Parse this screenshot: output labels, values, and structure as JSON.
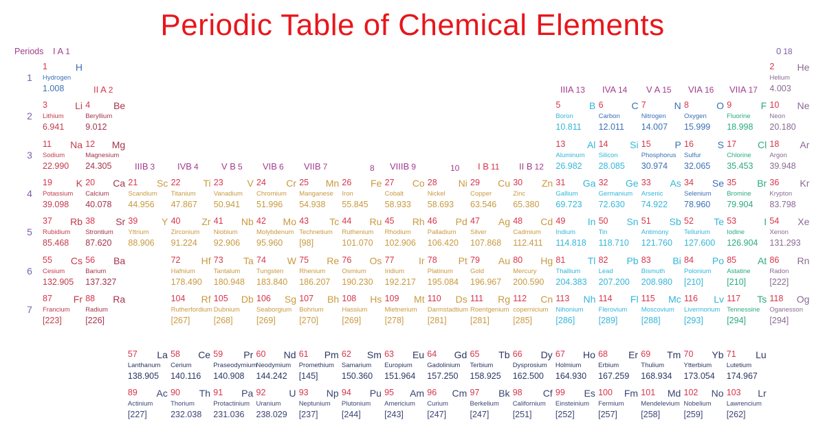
{
  "title": "Periodic Table of Chemical Elements",
  "header": {
    "periods_label": "Periods"
  },
  "period_numbers": [
    "1",
    "2",
    "3",
    "4",
    "5",
    "6",
    "7"
  ],
  "group_labels": {
    "g1": {
      "roman": "I A",
      "num": "1"
    },
    "g2": {
      "roman": "II A",
      "num": "2"
    },
    "g3": {
      "roman": "IIIB",
      "num": "3"
    },
    "g4": {
      "roman": "IVB",
      "num": "4"
    },
    "g5": {
      "roman": "V B",
      "num": "5"
    },
    "g6": {
      "roman": "VIB",
      "num": "6"
    },
    "g7": {
      "roman": "VIIB",
      "num": "7"
    },
    "g8": {
      "roman": "",
      "num": "8"
    },
    "g9": {
      "roman": "VIIIB",
      "num": "9"
    },
    "g10": {
      "roman": "",
      "num": "10"
    },
    "g11": {
      "roman": "I B",
      "num": "11"
    },
    "g12": {
      "roman": "II B",
      "num": "12"
    },
    "g13": {
      "roman": "IIIA",
      "num": "13"
    },
    "g14": {
      "roman": "IVA",
      "num": "14"
    },
    "g15": {
      "roman": "V A",
      "num": "15"
    },
    "g16": {
      "roman": "VIA",
      "num": "16"
    },
    "g17": {
      "roman": "VIIA",
      "num": "17"
    },
    "g18": {
      "roman": "0",
      "num": "18"
    }
  },
  "category_colors": {
    "nonmetal": "#3a6fb5",
    "alkali": "#c23a4a",
    "alkaline": "#a3344a",
    "transition": "#c9993f",
    "post": "#33b6d9",
    "metalloid": "#33b6d9",
    "halogen": "#2aaa7f",
    "noble": "#8a6a93",
    "lanthanide": "#2b3561",
    "actinide": "#3a4472"
  },
  "elements": [
    {
      "z": "1",
      "sym": "H",
      "name": "Hydrogen",
      "mass": "1.008",
      "group": 1,
      "period": 1,
      "cat": "nonmetal"
    },
    {
      "z": "2",
      "sym": "He",
      "name": "Helium",
      "mass": "4.003",
      "group": 18,
      "period": 1,
      "cat": "noble"
    },
    {
      "z": "3",
      "sym": "Li",
      "name": "Lithium",
      "mass": "6.941",
      "group": 1,
      "period": 2,
      "cat": "alkali"
    },
    {
      "z": "4",
      "sym": "Be",
      "name": "Beryllium",
      "mass": "9.012",
      "group": 2,
      "period": 2,
      "cat": "alkaline"
    },
    {
      "z": "5",
      "sym": "B",
      "name": "Boron",
      "mass": "10.811",
      "group": 13,
      "period": 2,
      "cat": "metalloid"
    },
    {
      "z": "6",
      "sym": "C",
      "name": "Carbon",
      "mass": "12.011",
      "group": 14,
      "period": 2,
      "cat": "nonmetal"
    },
    {
      "z": "7",
      "sym": "N",
      "name": "Nitrogen",
      "mass": "14.007",
      "group": 15,
      "period": 2,
      "cat": "nonmetal"
    },
    {
      "z": "8",
      "sym": "O",
      "name": "Oxygen",
      "mass": "15.999",
      "group": 16,
      "period": 2,
      "cat": "nonmetal"
    },
    {
      "z": "9",
      "sym": "F",
      "name": "Fluorine",
      "mass": "18.998",
      "group": 17,
      "period": 2,
      "cat": "halogen"
    },
    {
      "z": "10",
      "sym": "Ne",
      "name": "Neon",
      "mass": "20.180",
      "group": 18,
      "period": 2,
      "cat": "noble"
    },
    {
      "z": "11",
      "sym": "Na",
      "name": "Sodium",
      "mass": "22.990",
      "group": 1,
      "period": 3,
      "cat": "alkali"
    },
    {
      "z": "12",
      "sym": "Mg",
      "name": "Magnesium",
      "mass": "24.305",
      "group": 2,
      "period": 3,
      "cat": "alkaline"
    },
    {
      "z": "13",
      "sym": "Al",
      "name": "Aluminum",
      "mass": "26.982",
      "group": 13,
      "period": 3,
      "cat": "post"
    },
    {
      "z": "14",
      "sym": "Si",
      "name": "Silicon",
      "mass": "28.085",
      "group": 14,
      "period": 3,
      "cat": "metalloid"
    },
    {
      "z": "15",
      "sym": "P",
      "name": "Phosphorus",
      "mass": "30.974",
      "group": 15,
      "period": 3,
      "cat": "nonmetal"
    },
    {
      "z": "16",
      "sym": "S",
      "name": "Sulfur",
      "mass": "32.065",
      "group": 16,
      "period": 3,
      "cat": "nonmetal"
    },
    {
      "z": "17",
      "sym": "Cl",
      "name": "Chlorine",
      "mass": "35.453",
      "group": 17,
      "period": 3,
      "cat": "halogen"
    },
    {
      "z": "18",
      "sym": "Ar",
      "name": "Argon",
      "mass": "39.948",
      "group": 18,
      "period": 3,
      "cat": "noble"
    },
    {
      "z": "19",
      "sym": "K",
      "name": "Potassium",
      "mass": "39.098",
      "group": 1,
      "period": 4,
      "cat": "alkali"
    },
    {
      "z": "20",
      "sym": "Ca",
      "name": "Calcium",
      "mass": "40.078",
      "group": 2,
      "period": 4,
      "cat": "alkaline"
    },
    {
      "z": "21",
      "sym": "Sc",
      "name": "Scandium",
      "mass": "44.956",
      "group": 3,
      "period": 4,
      "cat": "transition"
    },
    {
      "z": "22",
      "sym": "Ti",
      "name": "Titanium",
      "mass": "47.867",
      "group": 4,
      "period": 4,
      "cat": "transition"
    },
    {
      "z": "23",
      "sym": "V",
      "name": "Vanadium",
      "mass": "50.941",
      "group": 5,
      "period": 4,
      "cat": "transition"
    },
    {
      "z": "24",
      "sym": "Cr",
      "name": "Chromium",
      "mass": "51.996",
      "group": 6,
      "period": 4,
      "cat": "transition"
    },
    {
      "z": "25",
      "sym": "Mn",
      "name": "Manganese",
      "mass": "54.938",
      "group": 7,
      "period": 4,
      "cat": "transition"
    },
    {
      "z": "26",
      "sym": "Fe",
      "name": "Iron",
      "mass": "55.845",
      "group": 8,
      "period": 4,
      "cat": "transition"
    },
    {
      "z": "27",
      "sym": "Co",
      "name": "Cobalt",
      "mass": "58.933",
      "group": 9,
      "period": 4,
      "cat": "transition"
    },
    {
      "z": "28",
      "sym": "Ni",
      "name": "Nickel",
      "mass": "58.693",
      "group": 10,
      "period": 4,
      "cat": "transition"
    },
    {
      "z": "29",
      "sym": "Cu",
      "name": "Copper",
      "mass": "63.546",
      "group": 11,
      "period": 4,
      "cat": "transition"
    },
    {
      "z": "30",
      "sym": "Zn",
      "name": "Zinc",
      "mass": "65.380",
      "group": 12,
      "period": 4,
      "cat": "transition"
    },
    {
      "z": "31",
      "sym": "Ga",
      "name": "Gallium",
      "mass": "69.723",
      "group": 13,
      "period": 4,
      "cat": "post"
    },
    {
      "z": "32",
      "sym": "Ge",
      "name": "Germanium",
      "mass": "72.630",
      "group": 14,
      "period": 4,
      "cat": "metalloid"
    },
    {
      "z": "33",
      "sym": "As",
      "name": "Arsenic",
      "mass": "74.922",
      "group": 15,
      "period": 4,
      "cat": "metalloid"
    },
    {
      "z": "34",
      "sym": "Se",
      "name": "Selenium",
      "mass": "78.960",
      "group": 16,
      "period": 4,
      "cat": "nonmetal"
    },
    {
      "z": "35",
      "sym": "Br",
      "name": "Bromine",
      "mass": "79.904",
      "group": 17,
      "period": 4,
      "cat": "halogen"
    },
    {
      "z": "36",
      "sym": "Kr",
      "name": "Krypton",
      "mass": "83.798",
      "group": 18,
      "period": 4,
      "cat": "noble"
    },
    {
      "z": "37",
      "sym": "Rb",
      "name": "Rubidium",
      "mass": "85.468",
      "group": 1,
      "period": 5,
      "cat": "alkali"
    },
    {
      "z": "38",
      "sym": "Sr",
      "name": "Strontium",
      "mass": "87.620",
      "group": 2,
      "period": 5,
      "cat": "alkaline"
    },
    {
      "z": "39",
      "sym": "Y",
      "name": "Yttrium",
      "mass": "88.906",
      "group": 3,
      "period": 5,
      "cat": "transition"
    },
    {
      "z": "40",
      "sym": "Zr",
      "name": "Zirconium",
      "mass": "91.224",
      "group": 4,
      "period": 5,
      "cat": "transition"
    },
    {
      "z": "41",
      "sym": "Nb",
      "name": "Niobium",
      "mass": "92.906",
      "group": 5,
      "period": 5,
      "cat": "transition"
    },
    {
      "z": "42",
      "sym": "Mo",
      "name": "Molybdenum",
      "mass": "95.960",
      "group": 6,
      "period": 5,
      "cat": "transition"
    },
    {
      "z": "43",
      "sym": "Tc",
      "name": "Technetium",
      "mass": "[98]",
      "group": 7,
      "period": 5,
      "cat": "transition"
    },
    {
      "z": "44",
      "sym": "Ru",
      "name": "Ruthenium",
      "mass": "101.070",
      "group": 8,
      "period": 5,
      "cat": "transition"
    },
    {
      "z": "45",
      "sym": "Rh",
      "name": "Rhodium",
      "mass": "102.906",
      "group": 9,
      "period": 5,
      "cat": "transition"
    },
    {
      "z": "46",
      "sym": "Pd",
      "name": "Palladium",
      "mass": "106.420",
      "group": 10,
      "period": 5,
      "cat": "transition"
    },
    {
      "z": "47",
      "sym": "Ag",
      "name": "Silver",
      "mass": "107.868",
      "group": 11,
      "period": 5,
      "cat": "transition"
    },
    {
      "z": "48",
      "sym": "Cd",
      "name": "Cadmium",
      "mass": "112.411",
      "group": 12,
      "period": 5,
      "cat": "transition"
    },
    {
      "z": "49",
      "sym": "In",
      "name": "Indium",
      "mass": "114.818",
      "group": 13,
      "period": 5,
      "cat": "post"
    },
    {
      "z": "50",
      "sym": "Sn",
      "name": "Tin",
      "mass": "118.710",
      "group": 14,
      "period": 5,
      "cat": "post"
    },
    {
      "z": "51",
      "sym": "Sb",
      "name": "Antimony",
      "mass": "121.760",
      "group": 15,
      "period": 5,
      "cat": "metalloid"
    },
    {
      "z": "52",
      "sym": "Te",
      "name": "Tellurium",
      "mass": "127.600",
      "group": 16,
      "period": 5,
      "cat": "metalloid"
    },
    {
      "z": "53",
      "sym": "I",
      "name": "Iodine",
      "mass": "126.904",
      "group": 17,
      "period": 5,
      "cat": "halogen"
    },
    {
      "z": "54",
      "sym": "Xe",
      "name": "Xenon",
      "mass": "131.293",
      "group": 18,
      "period": 5,
      "cat": "noble"
    },
    {
      "z": "55",
      "sym": "Cs",
      "name": "Cesium",
      "mass": "132.905",
      "group": 1,
      "period": 6,
      "cat": "alkali"
    },
    {
      "z": "56",
      "sym": "Ba",
      "name": "Barium",
      "mass": "137.327",
      "group": 2,
      "period": 6,
      "cat": "alkaline"
    },
    {
      "z": "72",
      "sym": "Hf",
      "name": "Hafnium",
      "mass": "178.490",
      "group": 4,
      "period": 6,
      "cat": "transition"
    },
    {
      "z": "73",
      "sym": "Ta",
      "name": "Tantalum",
      "mass": "180.948",
      "group": 5,
      "period": 6,
      "cat": "transition"
    },
    {
      "z": "74",
      "sym": "W",
      "name": "Tungsten",
      "mass": "183.840",
      "group": 6,
      "period": 6,
      "cat": "transition"
    },
    {
      "z": "75",
      "sym": "Re",
      "name": "Rhenium",
      "mass": "186.207",
      "group": 7,
      "period": 6,
      "cat": "transition"
    },
    {
      "z": "76",
      "sym": "Os",
      "name": "Osmium",
      "mass": "190.230",
      "group": 8,
      "period": 6,
      "cat": "transition"
    },
    {
      "z": "77",
      "sym": "Ir",
      "name": "Iridium",
      "mass": "192.217",
      "group": 9,
      "period": 6,
      "cat": "transition"
    },
    {
      "z": "78",
      "sym": "Pt",
      "name": "Platinum",
      "mass": "195.084",
      "group": 10,
      "period": 6,
      "cat": "transition"
    },
    {
      "z": "79",
      "sym": "Au",
      "name": "Gold",
      "mass": "196.967",
      "group": 11,
      "period": 6,
      "cat": "transition"
    },
    {
      "z": "80",
      "sym": "Hg",
      "name": "Mercury",
      "mass": "200.590",
      "group": 12,
      "period": 6,
      "cat": "transition"
    },
    {
      "z": "81",
      "sym": "Tl",
      "name": "Thallium",
      "mass": "204.383",
      "group": 13,
      "period": 6,
      "cat": "post"
    },
    {
      "z": "82",
      "sym": "Pb",
      "name": "Lead",
      "mass": "207.200",
      "group": 14,
      "period": 6,
      "cat": "post"
    },
    {
      "z": "83",
      "sym": "Bi",
      "name": "Bismuth",
      "mass": "208.980",
      "group": 15,
      "period": 6,
      "cat": "post"
    },
    {
      "z": "84",
      "sym": "Po",
      "name": "Polonium",
      "mass": "[210]",
      "group": 16,
      "period": 6,
      "cat": "metalloid"
    },
    {
      "z": "85",
      "sym": "At",
      "name": "Astatine",
      "mass": "[210]",
      "group": 17,
      "period": 6,
      "cat": "halogen"
    },
    {
      "z": "86",
      "sym": "Rn",
      "name": "Radon",
      "mass": "[222]",
      "group": 18,
      "period": 6,
      "cat": "noble"
    },
    {
      "z": "87",
      "sym": "Fr",
      "name": "Francium",
      "mass": "[223]",
      "group": 1,
      "period": 7,
      "cat": "alkali"
    },
    {
      "z": "88",
      "sym": "Ra",
      "name": "Radium",
      "mass": "[226]",
      "group": 2,
      "period": 7,
      "cat": "alkaline"
    },
    {
      "z": "104",
      "sym": "Rf",
      "name": "Rutherfordium",
      "mass": "[267]",
      "group": 4,
      "period": 7,
      "cat": "transition"
    },
    {
      "z": "105",
      "sym": "Db",
      "name": "Dubnium",
      "mass": "[268]",
      "group": 5,
      "period": 7,
      "cat": "transition"
    },
    {
      "z": "106",
      "sym": "Sg",
      "name": "Seaborgium",
      "mass": "[269]",
      "group": 6,
      "period": 7,
      "cat": "transition"
    },
    {
      "z": "107",
      "sym": "Bh",
      "name": "Bohrium",
      "mass": "[270]",
      "group": 7,
      "period": 7,
      "cat": "transition"
    },
    {
      "z": "108",
      "sym": "Hs",
      "name": "Hassium",
      "mass": "[269]",
      "group": 8,
      "period": 7,
      "cat": "transition"
    },
    {
      "z": "109",
      "sym": "Mt",
      "name": "Mietnerium",
      "mass": "[278]",
      "group": 9,
      "period": 7,
      "cat": "transition"
    },
    {
      "z": "110",
      "sym": "Ds",
      "name": "Darmstadtium",
      "mass": "[281]",
      "group": 10,
      "period": 7,
      "cat": "transition"
    },
    {
      "z": "111",
      "sym": "Rg",
      "name": "Roentgenium",
      "mass": "[281]",
      "group": 11,
      "period": 7,
      "cat": "transition"
    },
    {
      "z": "112",
      "sym": "Cn",
      "name": "copernicium",
      "mass": "[285]",
      "group": 12,
      "period": 7,
      "cat": "transition"
    },
    {
      "z": "113",
      "sym": "Nh",
      "name": "Nihonium",
      "mass": "[286]",
      "group": 13,
      "period": 7,
      "cat": "post"
    },
    {
      "z": "114",
      "sym": "Fl",
      "name": "Flerovium",
      "mass": "[289]",
      "group": 14,
      "period": 7,
      "cat": "post"
    },
    {
      "z": "115",
      "sym": "Mc",
      "name": "Moscovium",
      "mass": "[288]",
      "group": 15,
      "period": 7,
      "cat": "post"
    },
    {
      "z": "116",
      "sym": "Lv",
      "name": "Livermorium",
      "mass": "[293]",
      "group": 16,
      "period": 7,
      "cat": "post"
    },
    {
      "z": "117",
      "sym": "Ts",
      "name": "Tennessine",
      "mass": "[294]",
      "group": 17,
      "period": 7,
      "cat": "halogen"
    },
    {
      "z": "118",
      "sym": "Og",
      "name": "Oganesson",
      "mass": "[294]",
      "group": 18,
      "period": 7,
      "cat": "noble"
    }
  ],
  "lanthanides": [
    {
      "z": "57",
      "sym": "La",
      "name": "Lanthanum",
      "mass": "138.905"
    },
    {
      "z": "58",
      "sym": "Ce",
      "name": "Cerium",
      "mass": "140.116"
    },
    {
      "z": "59",
      "sym": "Pr",
      "name": "Praseodymium",
      "mass": "140.908"
    },
    {
      "z": "60",
      "sym": "Nd",
      "name": "Neodymium",
      "mass": "144.242"
    },
    {
      "z": "61",
      "sym": "Pm",
      "name": "Promethium",
      "mass": "[145]"
    },
    {
      "z": "62",
      "sym": "Sm",
      "name": "Samarium",
      "mass": "150.360"
    },
    {
      "z": "63",
      "sym": "Eu",
      "name": "Europium",
      "mass": "151.964"
    },
    {
      "z": "64",
      "sym": "Gd",
      "name": "Gadolinium",
      "mass": "157.250"
    },
    {
      "z": "65",
      "sym": "Tb",
      "name": "Terbium",
      "mass": "158.925"
    },
    {
      "z": "66",
      "sym": "Dy",
      "name": "Dysprosium",
      "mass": "162.500"
    },
    {
      "z": "67",
      "sym": "Ho",
      "name": "Holmium",
      "mass": "164.930"
    },
    {
      "z": "68",
      "sym": "Er",
      "name": "Erbium",
      "mass": "167.259"
    },
    {
      "z": "69",
      "sym": "Tm",
      "name": "Thulium",
      "mass": "168.934"
    },
    {
      "z": "70",
      "sym": "Yb",
      "name": "Ytterbium",
      "mass": "173.054"
    },
    {
      "z": "71",
      "sym": "Lu",
      "name": "Lutetium",
      "mass": "174.967"
    }
  ],
  "actinides": [
    {
      "z": "89",
      "sym": "Ac",
      "name": "Actinium",
      "mass": "[227]"
    },
    {
      "z": "90",
      "sym": "Th",
      "name": "Thorium",
      "mass": "232.038"
    },
    {
      "z": "91",
      "sym": "Pa",
      "name": "Protactinium",
      "mass": "231.036"
    },
    {
      "z": "92",
      "sym": "U",
      "name": "Uranium",
      "mass": "238.029"
    },
    {
      "z": "93",
      "sym": "Np",
      "name": "Neptunium",
      "mass": "[237]"
    },
    {
      "z": "94",
      "sym": "Pu",
      "name": "Plutonium",
      "mass": "[244]"
    },
    {
      "z": "95",
      "sym": "Am",
      "name": "Americium",
      "mass": "[243]"
    },
    {
      "z": "96",
      "sym": "Cm",
      "name": "Curium",
      "mass": "[247]"
    },
    {
      "z": "97",
      "sym": "Bk",
      "name": "Berkelium",
      "mass": "[247]"
    },
    {
      "z": "98",
      "sym": "Cf",
      "name": "Californium",
      "mass": "[251]"
    },
    {
      "z": "99",
      "sym": "Es",
      "name": "Einsteinium",
      "mass": "[252]"
    },
    {
      "z": "100",
      "sym": "Fm",
      "name": "Fermium",
      "mass": "[257]"
    },
    {
      "z": "101",
      "sym": "Md",
      "name": "Mendelevium",
      "mass": "[258]"
    },
    {
      "z": "102",
      "sym": "No",
      "name": "Nobelium",
      "mass": "[259]"
    },
    {
      "z": "103",
      "sym": "Lr",
      "name": "Lawrencium",
      "mass": "[262]"
    }
  ]
}
